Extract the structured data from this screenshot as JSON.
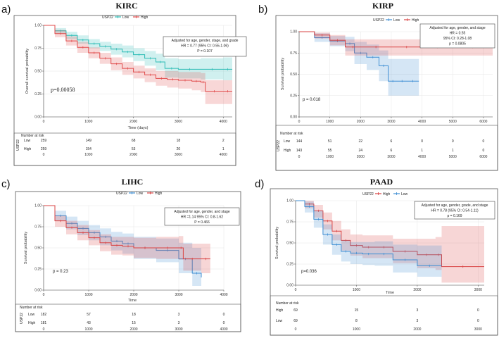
{
  "colors": {
    "low_kirc": "#2bbbb5",
    "high_kirc": "#e04a4a",
    "red": "#d94343",
    "blue": "#3e8ed3",
    "risk_low_teal": "#2aa7a3",
    "risk_high_red": "#d94343"
  },
  "chart_data": [
    {
      "id": "a",
      "type": "line",
      "letter": "a)",
      "title": "KIRC",
      "legend": {
        "title": "USP22",
        "entries": [
          "Low",
          "High"
        ]
      },
      "xlabel": "Time (days)",
      "ylabel": "Overall survival probability",
      "xlim": [
        0,
        4200
      ],
      "ylim": [
        0,
        1
      ],
      "xticks": [
        0,
        1000,
        2000,
        3000,
        4000
      ],
      "xtick_labels": [
        "0",
        "1000",
        "2000",
        "3000",
        "4000"
      ],
      "yticks": [
        0,
        0.25,
        0.5,
        0.75,
        1.0
      ],
      "ytick_labels": [
        "0.00",
        "0.25",
        "0.50",
        "0.75",
        "1.00"
      ],
      "pvalue": "p=0.00058",
      "annotation": [
        "Adjusted for age, gender, stage, and grade",
        "HR = 0.77 (95% CI: 0.55-1.06)",
        "P = 0.107"
      ],
      "series": [
        {
          "name": "Low",
          "color": "#2bbbb5",
          "x": [
            0,
            250,
            500,
            750,
            1000,
            1250,
            1500,
            1750,
            2000,
            2250,
            2500,
            2700,
            3000,
            3500,
            4000,
            4200
          ],
          "y": [
            1.0,
            0.94,
            0.89,
            0.84,
            0.8,
            0.77,
            0.74,
            0.71,
            0.68,
            0.64,
            0.6,
            0.53,
            0.52,
            0.52,
            0.52,
            0.52
          ],
          "lower": [
            1.0,
            0.91,
            0.85,
            0.8,
            0.75,
            0.72,
            0.68,
            0.65,
            0.61,
            0.56,
            0.51,
            0.43,
            0.42,
            0.41,
            0.4,
            0.4
          ],
          "upper": [
            1.0,
            0.97,
            0.93,
            0.89,
            0.85,
            0.82,
            0.8,
            0.78,
            0.75,
            0.72,
            0.69,
            0.64,
            0.63,
            0.64,
            0.65,
            0.65
          ]
        },
        {
          "name": "High",
          "color": "#e04a4a",
          "x": [
            0,
            250,
            500,
            750,
            1000,
            1250,
            1500,
            1750,
            2000,
            2250,
            2500,
            2750,
            3000,
            3300,
            3500,
            3600,
            4000,
            4200
          ],
          "y": [
            1.0,
            0.91,
            0.83,
            0.76,
            0.7,
            0.64,
            0.58,
            0.53,
            0.49,
            0.46,
            0.42,
            0.41,
            0.4,
            0.39,
            0.38,
            0.28,
            0.28,
            0.28
          ],
          "lower": [
            1.0,
            0.87,
            0.78,
            0.7,
            0.64,
            0.58,
            0.51,
            0.46,
            0.42,
            0.38,
            0.34,
            0.32,
            0.31,
            0.29,
            0.27,
            0.14,
            0.14,
            0.14
          ],
          "upper": [
            1.0,
            0.95,
            0.88,
            0.82,
            0.76,
            0.7,
            0.65,
            0.6,
            0.56,
            0.53,
            0.5,
            0.5,
            0.49,
            0.49,
            0.48,
            0.4,
            0.4,
            0.4
          ]
        }
      ],
      "risk_table": {
        "title": "Number at risk",
        "group_label": "USP22",
        "rows": [
          {
            "label": "Low",
            "color": "#2aa7a3",
            "values": [
              "259",
              "149",
              "68",
              "18",
              "2"
            ]
          },
          {
            "label": "High",
            "color": "#2aa7a3",
            "values": [
              "259",
              "154",
              "53",
              "20",
              "1"
            ]
          }
        ],
        "x": [
          0,
          1000,
          2000,
          3000,
          4000
        ],
        "xtick_labels": [
          "0",
          "1000",
          "2000",
          "3000",
          "4000"
        ],
        "xlabel": "Time (days)"
      }
    },
    {
      "id": "b",
      "type": "line",
      "letter": "b)",
      "title": "KIRP",
      "legend": {
        "title": "USP22",
        "entries": [
          "Low",
          "High"
        ]
      },
      "xlabel": "",
      "ylabel": "Survival probability",
      "xlim": [
        0,
        6300
      ],
      "ylim": [
        0,
        1
      ],
      "xticks": [
        0,
        1000,
        2000,
        3000,
        4000,
        5000,
        6000
      ],
      "xtick_labels": [
        "0",
        "1000",
        "2000",
        "3000",
        "4000",
        "5000",
        "6000"
      ],
      "yticks": [
        0,
        0.25,
        0.5,
        0.75,
        1.0
      ],
      "ytick_labels": [
        "0.00",
        "0.25",
        "0.50",
        "0.75",
        "1.00"
      ],
      "pvalue": "p = 0.018",
      "annotation": [
        "Adjusted for age, gender, and stage",
        "HR = 0.55",
        "95% CI: 0.28-1.08",
        "p = 0.0805"
      ],
      "series": [
        {
          "name": "Low",
          "color": "#3e8ed3",
          "x": [
            0,
            500,
            1000,
            1500,
            1800,
            2200,
            2600,
            2900,
            3200,
            3500,
            3900
          ],
          "y": [
            1.0,
            0.93,
            0.89,
            0.86,
            0.75,
            0.7,
            0.6,
            0.42,
            0.42,
            0.42,
            0.42
          ],
          "lower": [
            1.0,
            0.88,
            0.83,
            0.77,
            0.62,
            0.55,
            0.42,
            0.25,
            0.25,
            0.25,
            0.25
          ],
          "upper": [
            1.0,
            0.98,
            0.95,
            0.94,
            0.88,
            0.85,
            0.78,
            0.68,
            0.68,
            0.68,
            0.68
          ]
        },
        {
          "name": "High",
          "color": "#d94343",
          "x": [
            0,
            500,
            1000,
            1500,
            2000,
            3000,
            4000,
            5000,
            6300
          ],
          "y": [
            1.0,
            0.96,
            0.9,
            0.82,
            0.82,
            0.82,
            0.82,
            0.82,
            0.82
          ],
          "lower": [
            1.0,
            0.92,
            0.84,
            0.72,
            0.72,
            0.72,
            0.72,
            0.72,
            0.72
          ],
          "upper": [
            1.0,
            0.99,
            0.96,
            0.91,
            0.91,
            0.91,
            0.91,
            0.91,
            0.91
          ]
        }
      ],
      "risk_table": {
        "title": "Number at risk",
        "group_label": "USP22",
        "rows": [
          {
            "label": "Low",
            "color": "#3e8ed3",
            "values": [
              "144",
              "51",
              "22",
              "6",
              "0",
              "0",
              "0"
            ]
          },
          {
            "label": "High",
            "color": "#d94343",
            "values": [
              "143",
              "55",
              "24",
              "6",
              "1",
              "1",
              "0"
            ]
          }
        ],
        "x": [
          0,
          1000,
          2000,
          3000,
          4000,
          5000,
          6000
        ],
        "xtick_labels": [
          "0",
          "1000",
          "2000",
          "3000",
          "4000",
          "5000",
          "6000"
        ],
        "xlabel": ""
      }
    },
    {
      "id": "c",
      "type": "line",
      "letter": "c)",
      "title": "LIHC",
      "legend": {
        "title": "USP22",
        "entries": [
          "Low",
          "High"
        ]
      },
      "xlabel": "Time",
      "ylabel": "Survival probability",
      "xlim": [
        0,
        4000
      ],
      "ylim": [
        0,
        1
      ],
      "xticks": [
        0,
        1000,
        2000,
        3000,
        4000
      ],
      "xtick_labels": [
        "0",
        "1000",
        "2000",
        "3000",
        "4000"
      ],
      "yticks": [
        0,
        0.25,
        0.5,
        0.75,
        1.0
      ],
      "ytick_labels": [
        "0.00",
        "0.25",
        "0.50",
        "0.75",
        "1.00"
      ],
      "pvalue": "p = 0.23",
      "annotation": [
        "Adjusted for age, gender, and stage",
        "HR =1.14 95% CI: 0.8-1.62",
        "P = 0.466"
      ],
      "series": [
        {
          "name": "Low",
          "color": "#3e8ed3",
          "x": [
            0,
            250,
            500,
            750,
            1000,
            1250,
            1500,
            1750,
            2000,
            2500,
            3000,
            3300,
            3500
          ],
          "y": [
            1.0,
            0.88,
            0.79,
            0.73,
            0.68,
            0.63,
            0.58,
            0.55,
            0.5,
            0.47,
            0.37,
            0.2,
            0.15
          ],
          "lower": [
            1.0,
            0.82,
            0.72,
            0.65,
            0.59,
            0.53,
            0.47,
            0.43,
            0.37,
            0.33,
            0.2,
            0.05,
            0.03
          ],
          "upper": [
            1.0,
            0.94,
            0.87,
            0.82,
            0.77,
            0.73,
            0.69,
            0.67,
            0.63,
            0.61,
            0.56,
            0.5,
            0.45
          ]
        },
        {
          "name": "High",
          "color": "#d94343",
          "x": [
            0,
            250,
            500,
            750,
            1000,
            1250,
            1500,
            1750,
            2000,
            2500,
            3000,
            3100,
            3500,
            3700
          ],
          "y": [
            1.0,
            0.82,
            0.74,
            0.68,
            0.62,
            0.56,
            0.53,
            0.52,
            0.5,
            0.5,
            0.5,
            0.37,
            0.37,
            0.37
          ],
          "lower": [
            1.0,
            0.75,
            0.66,
            0.59,
            0.53,
            0.46,
            0.42,
            0.41,
            0.38,
            0.37,
            0.36,
            0.23,
            0.2,
            0.2
          ],
          "upper": [
            1.0,
            0.88,
            0.82,
            0.77,
            0.71,
            0.66,
            0.63,
            0.63,
            0.62,
            0.63,
            0.64,
            0.55,
            0.55,
            0.55
          ]
        }
      ],
      "risk_table": {
        "title": "Number at risk",
        "group_label": "USP22",
        "rows": [
          {
            "label": "Low",
            "color": "#3e8ed3",
            "values": [
              "182",
              "57",
              "18",
              "3",
              "0"
            ]
          },
          {
            "label": "High",
            "color": "#d94343",
            "values": [
              "181",
              "43",
              "15",
              "3",
              "0"
            ]
          }
        ],
        "x": [
          0,
          1000,
          2000,
          3000,
          4000
        ],
        "xtick_labels": [
          "0",
          "1000",
          "2000",
          "3000",
          "4000"
        ],
        "xlabel": "Time"
      }
    },
    {
      "id": "d",
      "type": "line",
      "letter": "d)",
      "title": "PAAD",
      "legend": {
        "title": "USP22",
        "entries": [
          "High",
          "Low"
        ]
      },
      "xlabel": "Time",
      "ylabel": "Survival probability",
      "xlim": [
        0,
        3100
      ],
      "ylim": [
        0,
        1
      ],
      "xticks": [
        0,
        1000,
        2000,
        3000
      ],
      "xtick_labels": [
        "0",
        "1000",
        "2000",
        "3000"
      ],
      "yticks": [
        0,
        0.25,
        0.5,
        0.75,
        1.0
      ],
      "ytick_labels": [
        "0.00",
        "0.25",
        "0.50",
        "0.75",
        "1.00"
      ],
      "pvalue": "p=0.036",
      "annotation": [
        "Adjusted for age, gender, grade, and stage",
        "HR = 0.78 (95% CI: 0.54-1.11)",
        "p = 0.169"
      ],
      "series": [
        {
          "name": "High",
          "color": "#d94343",
          "x": [
            0,
            150,
            300,
            450,
            600,
            750,
            900,
            1100,
            1300,
            1600,
            2000,
            2300,
            2400,
            3100
          ],
          "y": [
            1.0,
            0.96,
            0.88,
            0.76,
            0.64,
            0.53,
            0.47,
            0.45,
            0.45,
            0.4,
            0.36,
            0.36,
            0.22,
            0.22
          ],
          "lower": [
            1.0,
            0.91,
            0.8,
            0.66,
            0.53,
            0.41,
            0.35,
            0.32,
            0.32,
            0.26,
            0.2,
            0.18,
            0.03,
            0.03
          ],
          "upper": [
            1.0,
            1.0,
            0.95,
            0.86,
            0.76,
            0.66,
            0.6,
            0.59,
            0.59,
            0.55,
            0.55,
            0.57,
            0.7,
            0.7
          ]
        },
        {
          "name": "Low",
          "color": "#3e8ed3",
          "x": [
            0,
            150,
            300,
            450,
            600,
            750,
            900,
            1100,
            1300,
            1600,
            2000,
            2400
          ],
          "y": [
            1.0,
            0.93,
            0.78,
            0.6,
            0.48,
            0.4,
            0.38,
            0.37,
            0.37,
            0.3,
            0.23,
            0.23
          ],
          "lower": [
            1.0,
            0.86,
            0.68,
            0.48,
            0.36,
            0.28,
            0.25,
            0.24,
            0.23,
            0.15,
            0.1,
            0.1
          ],
          "upper": [
            1.0,
            0.99,
            0.88,
            0.72,
            0.6,
            0.53,
            0.51,
            0.51,
            0.52,
            0.48,
            0.47,
            0.47
          ]
        }
      ],
      "risk_table": {
        "title": "Number at risk",
        "group_label": "",
        "rows": [
          {
            "label": "High",
            "color": "#d94343",
            "values": [
              "69",
              "15",
              "3",
              "0"
            ]
          },
          {
            "label": "Low",
            "color": "#3e8ed3",
            "values": [
              "69",
              "8",
              "3",
              "0"
            ]
          }
        ],
        "x": [
          0,
          1000,
          2000,
          3000
        ],
        "xtick_labels": [
          "0",
          "1000",
          "2000",
          "3000"
        ],
        "xlabel": ""
      }
    }
  ]
}
